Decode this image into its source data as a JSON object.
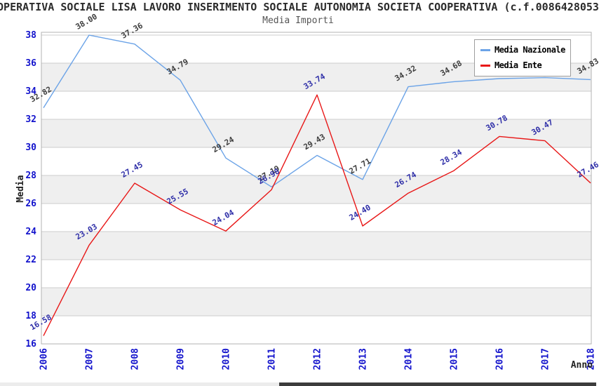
{
  "title": "OPERATIVA SOCIALE LISA LAVORO INSERIMENTO SOCIALE AUTONOMIA SOCIETA COOPERATIVA (c.f.0086428053",
  "subtitle": "Media Importi",
  "axes": {
    "x_label": "Anno",
    "y_label": "Media",
    "y_ticks": [
      "38",
      "36",
      "34",
      "32",
      "30",
      "28",
      "26",
      "24",
      "22",
      "20",
      "18",
      "16"
    ],
    "x_ticks": [
      "2006",
      "2007",
      "2008",
      "2009",
      "2010",
      "2011",
      "2012",
      "2013",
      "2014",
      "2015",
      "2016",
      "2017",
      "2018"
    ]
  },
  "legend": {
    "items": [
      {
        "label": "Media Nazionale",
        "color": "#6BA3E7"
      },
      {
        "label": "Media Ente",
        "color": "#E81717"
      }
    ]
  },
  "colors": {
    "tick_label": "#1212CC",
    "grid_line": "#CCCCCC",
    "band_fill": "#EFEFEF",
    "plot_border": "#B3B3B3",
    "title": "#2B2B2B",
    "nazionale_line": "#6BA3E7",
    "nazionale_point_label": "#3D3D3D",
    "ente_line": "#E81717",
    "ente_point_label": "#2F2FA8"
  },
  "chart_data": {
    "type": "line",
    "title": "OPERATIVA SOCIALE LISA LAVORO INSERIMENTO SOCIALE AUTONOMIA SOCIETA COOPERATIVA (c.f.0086428053",
    "subtitle": "Media Importi",
    "xlabel": "Anno",
    "ylabel": "Media",
    "x": [
      2006,
      2007,
      2008,
      2009,
      2010,
      2011,
      2012,
      2013,
      2014,
      2015,
      2016,
      2017,
      2018
    ],
    "ylim": [
      16,
      38.2
    ],
    "grid": "horizontal gridlines every 2 units with alternating gray bands",
    "legend_position": "top-right",
    "series": [
      {
        "name": "Media Nazionale",
        "color": "#6BA3E7",
        "label_color": "#3D3D3D",
        "values": [
          32.82,
          38.0,
          37.36,
          34.79,
          29.24,
          27.19,
          29.43,
          27.71,
          34.32,
          34.68,
          34.9,
          34.97,
          34.83
        ],
        "point_labels": [
          "32.82",
          "38.00",
          "37.36",
          "34.79",
          "29.24",
          "27.19",
          "29.43",
          "27.71",
          "34.32",
          "34.68",
          null,
          null,
          "34.83"
        ]
      },
      {
        "name": "Media Ente",
        "color": "#E81717",
        "label_color": "#2F2FA8",
        "values": [
          16.58,
          23.03,
          27.45,
          25.55,
          24.04,
          26.98,
          33.74,
          24.4,
          26.74,
          28.34,
          30.78,
          30.47,
          27.46
        ],
        "point_labels": [
          "16.58",
          "23.03",
          "27.45",
          "25.55",
          "24.04",
          "26.98",
          "33.74",
          "24.40",
          "26.74",
          "28.34",
          "30.78",
          "30.47",
          "27.46"
        ]
      }
    ]
  }
}
